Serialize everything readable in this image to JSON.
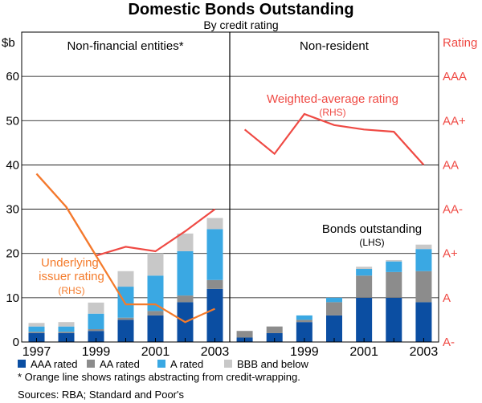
{
  "chart_data": {
    "type": "bar",
    "title": "Domestic Bonds Outstanding",
    "subtitle": "By credit rating",
    "left_axis_label": "$b",
    "right_axis_label": "Rating",
    "ylim": [
      0,
      70
    ],
    "left_ticks": [
      "0",
      "10",
      "20",
      "30",
      "40",
      "50",
      "60"
    ],
    "left_tick_values": [
      0,
      10,
      20,
      30,
      40,
      50,
      60
    ],
    "rating_ticks": [
      "A-",
      "A",
      "A+",
      "AA-",
      "AA",
      "AA+",
      "AAA"
    ],
    "rating_tick_values": [
      0,
      10,
      20,
      30,
      40,
      50,
      60
    ],
    "colors": {
      "AAA": "#0b4ea2",
      "AA": "#8c8c8c",
      "A": "#3aa8e3",
      "BBB": "#c8c8c8",
      "weighted_line": "#ef4a44",
      "issuer_line": "#f47b2b"
    },
    "series_names": [
      "AAA rated",
      "AA rated",
      "A rated",
      "BBB and below"
    ],
    "panels": [
      {
        "name": "Non-financial entities*",
        "x_ticks": [
          "1997",
          "1999",
          "2001",
          "2003"
        ],
        "x_tick_years": [
          1997,
          1999,
          2001,
          2003
        ],
        "years": [
          1997,
          1998,
          1999,
          2000,
          2001,
          2002,
          2003
        ],
        "series": [
          {
            "name": "AAA rated",
            "values": [
              2.0,
              2.0,
              2.5,
              5.0,
              6.0,
              9.0,
              12.0
            ]
          },
          {
            "name": "AA rated",
            "values": [
              0.3,
              0.3,
              0.4,
              0.5,
              1.0,
              1.5,
              2.0
            ]
          },
          {
            "name": "A rated",
            "values": [
              1.2,
              1.2,
              3.5,
              7.0,
              8.0,
              10.0,
              11.5
            ]
          },
          {
            "name": "BBB and below",
            "values": [
              0.8,
              1.0,
              2.5,
              3.5,
              5.0,
              4.0,
              2.5
            ]
          }
        ],
        "line": {
          "name": "Underlying issuer rating",
          "values": [
            38.0,
            30.5,
            19.5,
            8.5,
            8.5,
            4.5,
            7.5
          ],
          "label": "Underlying\nissuer rating",
          "sublabel": "(RHS)"
        },
        "line2": {
          "name": "Credit-wrapped rating",
          "values": [
            38.0,
            30.5,
            19.5,
            21.5,
            20.5,
            25.0,
            30.0
          ]
        }
      },
      {
        "name": "Non-resident",
        "x_ticks": [
          "1999",
          "2001",
          "2003"
        ],
        "x_tick_years": [
          1999,
          2001,
          2003
        ],
        "years": [
          1997,
          1998,
          1999,
          2000,
          2001,
          2002,
          2003
        ],
        "series": [
          {
            "name": "AAA rated",
            "values": [
              1.0,
              2.0,
              4.5,
              6.0,
              10.0,
              10.0,
              9.0
            ]
          },
          {
            "name": "AA rated",
            "values": [
              1.5,
              1.5,
              0.5,
              3.0,
              5.0,
              5.8,
              7.0
            ]
          },
          {
            "name": "A rated",
            "values": [
              0.0,
              0.0,
              1.0,
              1.0,
              1.5,
              2.4,
              5.0
            ]
          },
          {
            "name": "BBB and below",
            "values": [
              0.0,
              0.0,
              0.0,
              0.0,
              0.5,
              0.3,
              1.0
            ]
          }
        ],
        "line": {
          "name": "Weighted-average rating",
          "values": [
            48.0,
            42.5,
            51.5,
            49.0,
            48.0,
            47.5,
            40.0
          ],
          "label": "Weighted-average rating",
          "sublabel": "(RHS)"
        },
        "bars_label": "Bonds outstanding",
        "bars_sublabel": "(LHS)"
      }
    ],
    "footnote": "* Orange line shows ratings abstracting from credit-wrapping.",
    "sources": "Sources: RBA; Standard and Poor's"
  }
}
